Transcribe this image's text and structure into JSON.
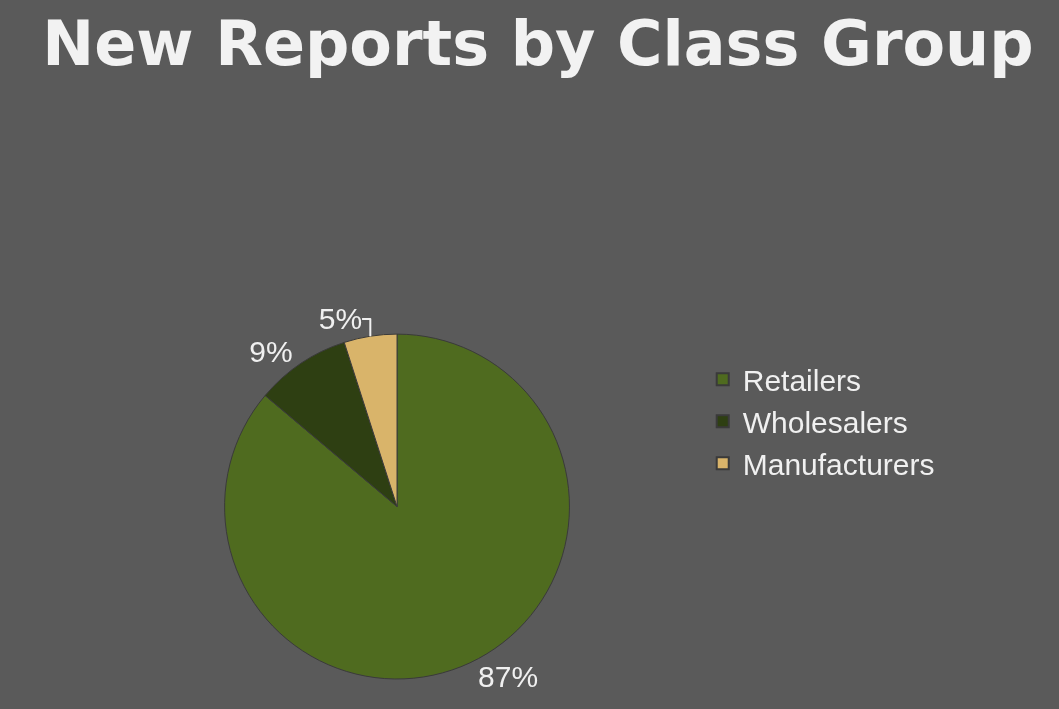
{
  "chart_data": {
    "type": "pie",
    "title": "New Reports by Class Group",
    "categories": [
      "Retailers",
      "Wholesalers",
      "Manufacturers"
    ],
    "values": [
      87,
      9,
      5
    ],
    "value_labels": [
      "87%",
      "9%",
      "5%"
    ],
    "colors": [
      "#4f6b1f",
      "#2e3f12",
      "#d9b46a"
    ],
    "legend": "right"
  }
}
